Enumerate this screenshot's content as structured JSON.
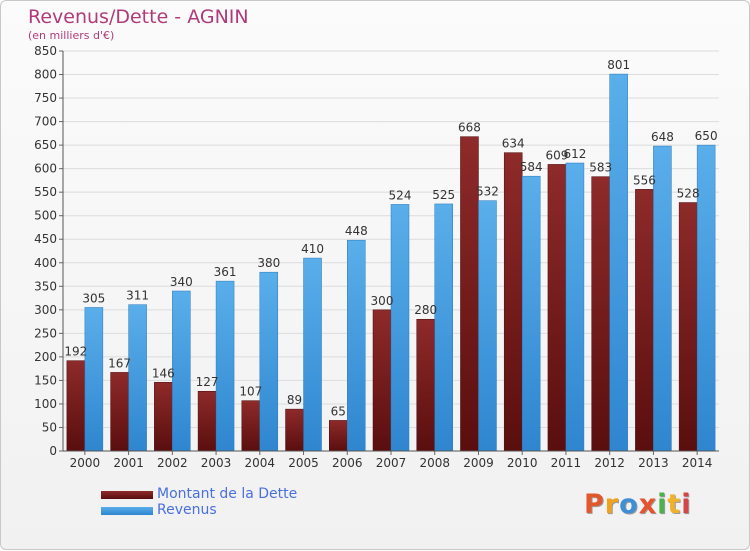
{
  "chart_data": {
    "type": "bar",
    "title": "Revenus/Dette - AGNIN",
    "subtitle": "(en milliers d'€)",
    "categories": [
      "2000",
      "2001",
      "2002",
      "2003",
      "2004",
      "2005",
      "2006",
      "2007",
      "2008",
      "2009",
      "2010",
      "2011",
      "2012",
      "2013",
      "2014"
    ],
    "series": [
      {
        "name": "Montant de la Dette",
        "color": "#7b1a1a",
        "values": [
          192,
          167,
          146,
          127,
          107,
          89,
          65,
          300,
          280,
          668,
          634,
          609,
          583,
          556,
          528
        ]
      },
      {
        "name": "Revenus",
        "color": "#4da3e6",
        "values": [
          305,
          311,
          340,
          361,
          380,
          410,
          448,
          524,
          525,
          532,
          584,
          612,
          801,
          648,
          650
        ]
      }
    ],
    "ylim": [
      0,
      850
    ],
    "ytick_step": 50,
    "xlabel": "",
    "ylabel": "",
    "grid": true,
    "legend": "bottom-left",
    "data_labels": true
  },
  "brand": {
    "logo_text": "Proxiti",
    "logo_colors": [
      "#e2572b",
      "#f0a21e",
      "#3f8fd6",
      "#e6532c",
      "#4bb24b",
      "#f2b12b",
      "#d64545"
    ]
  }
}
